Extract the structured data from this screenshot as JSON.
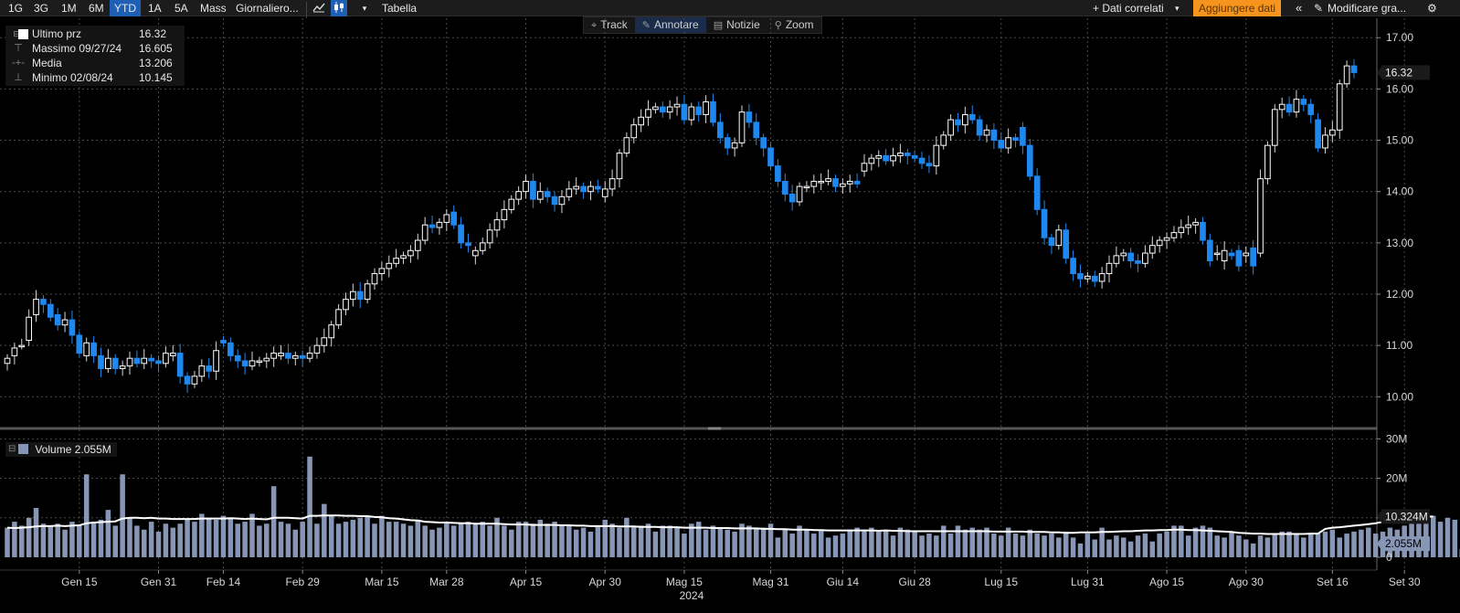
{
  "toolbar": {
    "periods": [
      "1G",
      "3G",
      "1M",
      "6M",
      "YTD",
      "1A",
      "5A",
      "Mass"
    ],
    "active_period": "YTD",
    "frequency": "Giornaliero...",
    "table_label": "Tabella",
    "related_label": "+ Dati correlati",
    "add_data_label": "Aggiungere dati",
    "modify_label": "Modificare gra...",
    "icons": [
      "line-chart-icon",
      "candlestick-icon",
      "dropdown-caret-icon",
      "double-chevron-left-icon",
      "pencil-icon",
      "gear-icon"
    ]
  },
  "modes": [
    {
      "label": "Track",
      "icon": "crosshair-icon"
    },
    {
      "label": "Annotare",
      "icon": "pencil-icon"
    },
    {
      "label": "Notizie",
      "icon": "news-icon"
    },
    {
      "label": "Zoom",
      "icon": "magnifier-icon"
    }
  ],
  "legend": {
    "last": {
      "label": "Ultimo prz",
      "value": "16.32"
    },
    "high": {
      "label": "Massimo 09/27/24",
      "value": "16.605"
    },
    "avg": {
      "label": "Media",
      "value": "13.206"
    },
    "low": {
      "label": "Minimo 02/08/24",
      "value": "10.145"
    }
  },
  "volume_legend": {
    "label": "Volume",
    "value": "2.055M"
  },
  "colors": {
    "up_candle": "#ffffff",
    "down_candle": "#1e88f0",
    "volume_bar": "#8896b5",
    "ma_line": "#ffffff",
    "grid": "#4a4a4a",
    "add_data_button": "#f7941d"
  },
  "chart_data": [
    {
      "type": "candlestick",
      "series_name": "Ultimo prz",
      "y_axis": {
        "min": 9.4,
        "max": 17.2,
        "ticks": [
          "10.00",
          "11.00",
          "12.00",
          "13.00",
          "14.00",
          "15.00",
          "16.00",
          "17.00"
        ],
        "side": "right"
      },
      "last_value_label": "16.32",
      "grid": true,
      "x_tick_labels": [
        "Gen 15",
        "Gen 31",
        "Feb 14",
        "Feb 29",
        "Mar 15",
        "Mar 28",
        "Apr 15",
        "Apr 30",
        "Mag 15",
        "Mag 31",
        "Giu 14",
        "Giu 28",
        "Lug 15",
        "Lug 31",
        "Ago 15",
        "Ago 30",
        "Set 16",
        "Set 30"
      ],
      "x_tick_index": [
        10,
        21,
        30,
        41,
        52,
        61,
        72,
        83,
        94,
        106,
        116,
        126,
        138,
        150,
        161,
        172,
        184,
        194
      ],
      "year_label": "2024",
      "closes": [
        10.75,
        10.95,
        11.0,
        11.55,
        11.9,
        11.8,
        11.55,
        11.4,
        11.5,
        11.2,
        10.85,
        11.05,
        10.8,
        10.55,
        10.75,
        10.55,
        10.6,
        10.75,
        10.65,
        10.75,
        10.7,
        10.65,
        10.85,
        10.85,
        10.4,
        10.25,
        10.4,
        10.6,
        10.5,
        10.9,
        11.05,
        10.8,
        10.7,
        10.6,
        10.7,
        10.7,
        10.75,
        10.85,
        10.85,
        10.75,
        10.8,
        10.75,
        10.85,
        11.0,
        11.15,
        11.4,
        11.7,
        11.9,
        12.05,
        11.9,
        12.2,
        12.4,
        12.5,
        12.6,
        12.7,
        12.75,
        12.85,
        13.05,
        13.35,
        13.3,
        13.4,
        13.55,
        13.35,
        13.0,
        12.95,
        12.85,
        13.0,
        13.25,
        13.45,
        13.65,
        13.85,
        14.0,
        14.2,
        13.85,
        14.0,
        13.9,
        13.75,
        13.9,
        14.05,
        14.1,
        14.0,
        14.1,
        14.05,
        14.05,
        14.25,
        14.75,
        15.05,
        15.3,
        15.45,
        15.6,
        15.65,
        15.55,
        15.65,
        15.7,
        15.4,
        15.65,
        15.5,
        15.75,
        15.35,
        15.05,
        14.85,
        14.95,
        15.55,
        15.35,
        15.05,
        14.85,
        14.5,
        14.2,
        13.95,
        13.8,
        14.1,
        14.1,
        14.2,
        14.2,
        14.25,
        14.1,
        14.15,
        14.2,
        14.15,
        14.55,
        14.65,
        14.7,
        14.6,
        14.7,
        14.75,
        14.7,
        14.65,
        14.55,
        14.5,
        14.9,
        15.1,
        15.4,
        15.3,
        15.5,
        15.4,
        15.1,
        15.2,
        15.0,
        14.85,
        15.05,
        15.0,
        14.9,
        14.3,
        13.65,
        13.1,
        12.95,
        13.25,
        12.7,
        12.4,
        12.3,
        12.35,
        12.25,
        12.4,
        12.6,
        12.75,
        12.8,
        12.65,
        12.6,
        12.8,
        12.95,
        13.05,
        13.1,
        13.2,
        13.3,
        13.35,
        13.4,
        13.05,
        12.65,
        12.8,
        12.85,
        12.75,
        12.55,
        12.8,
        12.55,
        14.25,
        14.9,
        15.6,
        15.7,
        15.55,
        15.8,
        15.7,
        15.5,
        14.85,
        15.1,
        15.2,
        16.1,
        16.45,
        16.32
      ],
      "opens": [
        10.65,
        10.8,
        11.0,
        11.1,
        11.6,
        11.9,
        11.8,
        11.6,
        11.4,
        11.5,
        11.2,
        10.8,
        11.05,
        10.8,
        10.55,
        10.75,
        10.55,
        10.6,
        10.75,
        10.65,
        10.75,
        10.7,
        10.65,
        10.8,
        10.85,
        10.4,
        10.25,
        10.4,
        10.6,
        10.5,
        11.1,
        11.05,
        10.8,
        10.7,
        10.6,
        10.7,
        10.7,
        10.75,
        10.8,
        10.85,
        10.75,
        10.8,
        10.75,
        10.85,
        11.0,
        11.15,
        11.4,
        11.7,
        11.9,
        12.05,
        11.9,
        12.2,
        12.4,
        12.5,
        12.6,
        12.7,
        12.75,
        12.85,
        13.05,
        13.35,
        13.3,
        13.4,
        13.6,
        13.35,
        13.0,
        12.75,
        12.85,
        13.0,
        13.25,
        13.45,
        13.65,
        13.85,
        14.0,
        14.2,
        13.85,
        14.0,
        13.9,
        13.75,
        13.9,
        14.05,
        14.1,
        14.0,
        14.1,
        13.9,
        14.05,
        14.25,
        14.75,
        15.05,
        15.3,
        15.45,
        15.6,
        15.65,
        15.55,
        15.65,
        15.7,
        15.4,
        15.65,
        15.5,
        15.75,
        15.35,
        15.05,
        14.85,
        14.95,
        15.55,
        15.35,
        15.05,
        14.85,
        14.5,
        14.2,
        13.95,
        13.8,
        14.1,
        14.1,
        14.2,
        14.2,
        14.25,
        14.1,
        14.15,
        14.2,
        14.4,
        14.55,
        14.65,
        14.7,
        14.6,
        14.7,
        14.75,
        14.7,
        14.65,
        14.55,
        14.5,
        14.9,
        15.1,
        15.4,
        15.3,
        15.5,
        15.4,
        15.1,
        15.2,
        15.0,
        14.85,
        15.05,
        15.25,
        14.9,
        14.3,
        13.65,
        13.1,
        12.95,
        13.25,
        12.7,
        12.4,
        12.3,
        12.35,
        12.25,
        12.4,
        12.6,
        12.75,
        12.8,
        12.65,
        12.6,
        12.8,
        12.95,
        13.05,
        13.1,
        13.2,
        13.3,
        13.35,
        13.4,
        13.05,
        12.8,
        12.65,
        12.8,
        12.85,
        12.75,
        12.9,
        12.8,
        14.25,
        14.9,
        15.6,
        15.7,
        15.55,
        15.8,
        15.7,
        15.4,
        14.85,
        15.1,
        15.2,
        16.1,
        16.45
      ]
    },
    {
      "type": "bar",
      "series_name": "Volume",
      "y_axis": {
        "min": 0,
        "max": 31,
        "ticks": [
          "0",
          "10M",
          "20M",
          "30M"
        ],
        "unit": "M",
        "side": "right"
      },
      "last_value_label": "2.055M",
      "ma_value_label": "10.324M",
      "grid": true,
      "values_millions": [
        7.5,
        9.0,
        8.0,
        10.0,
        12.5,
        8.5,
        8.0,
        8.5,
        7.0,
        9.0,
        8.0,
        21.0,
        9.0,
        9.5,
        12.0,
        8.0,
        21.0,
        10.0,
        8.0,
        7.0,
        9.0,
        6.5,
        8.5,
        7.5,
        8.5,
        9.5,
        9.0,
        11.0,
        10.0,
        9.5,
        10.5,
        10.0,
        8.5,
        9.0,
        11.0,
        8.0,
        8.5,
        18.0,
        9.0,
        8.5,
        7.0,
        9.0,
        25.5,
        8.5,
        13.5,
        10.5,
        8.5,
        9.0,
        9.5,
        10.0,
        10.5,
        8.5,
        10.5,
        9.0,
        9.0,
        8.5,
        8.0,
        9.5,
        8.0,
        7.0,
        7.5,
        9.0,
        8.0,
        8.5,
        9.0,
        8.5,
        9.0,
        8.0,
        10.0,
        8.0,
        7.0,
        9.0,
        9.0,
        8.5,
        9.5,
        8.5,
        9.0,
        8.0,
        8.0,
        7.0,
        7.5,
        6.5,
        8.0,
        9.5,
        8.5,
        7.5,
        10.0,
        8.0,
        8.0,
        8.5,
        6.5,
        8.0,
        8.0,
        7.5,
        6.0,
        8.5,
        9.0,
        7.0,
        8.0,
        7.5,
        7.0,
        6.5,
        8.5,
        8.0,
        7.5,
        7.5,
        8.5,
        5.0,
        7.0,
        6.0,
        8.0,
        7.0,
        6.0,
        7.0,
        5.0,
        5.5,
        6.0,
        7.0,
        7.5,
        7.0,
        7.5,
        6.5,
        7.0,
        5.5,
        7.5,
        7.0,
        6.5,
        5.5,
        6.0,
        5.5,
        8.0,
        6.0,
        8.0,
        7.0,
        7.5,
        7.0,
        7.5,
        6.0,
        5.5,
        7.5,
        6.0,
        5.5,
        7.0,
        6.0,
        5.5,
        6.0,
        5.0,
        6.5,
        5.0,
        3.5,
        6.0,
        4.5,
        7.5,
        4.5,
        5.5,
        5.0,
        4.0,
        5.5,
        6.0,
        4.0,
        6.0,
        6.5,
        8.0,
        8.0,
        5.5,
        7.5,
        8.0,
        7.5,
        5.5,
        5.0,
        6.5,
        5.5,
        4.5,
        3.5,
        5.5,
        5.0,
        6.0,
        6.5,
        6.5,
        6.0,
        5.0,
        6.0,
        6.0,
        6.5,
        7.0,
        5.0,
        6.0,
        6.5,
        7.0,
        7.5,
        6.0,
        6.5,
        7.5,
        7.0,
        8.0,
        8.5,
        9.0,
        9.5,
        10.5,
        9.0,
        10.0,
        9.5,
        2.055
      ],
      "ma_values_millions": [
        7.5,
        7.4,
        7.5,
        7.6,
        7.8,
        7.9,
        7.9,
        8.0,
        7.9,
        8.0,
        8.1,
        8.6,
        8.8,
        8.9,
        9.0,
        9.1,
        9.8,
        10.0,
        10.0,
        9.9,
        10.0,
        9.8,
        9.8,
        9.7,
        9.7,
        9.7,
        9.7,
        9.8,
        9.8,
        9.8,
        9.8,
        9.9,
        9.8,
        9.7,
        9.8,
        9.7,
        9.6,
        10.0,
        10.0,
        10.0,
        9.9,
        9.8,
        10.5,
        10.5,
        10.6,
        10.6,
        10.6,
        10.5,
        10.5,
        10.4,
        10.4,
        10.2,
        10.1,
        9.9,
        9.8,
        9.6,
        9.4,
        9.3,
        9.0,
        8.9,
        8.8,
        8.8,
        8.7,
        8.6,
        8.6,
        8.5,
        8.5,
        8.5,
        8.5,
        8.4,
        8.3,
        8.3,
        8.3,
        8.2,
        8.2,
        8.2,
        8.2,
        8.1,
        8.1,
        8.0,
        8.0,
        7.9,
        7.9,
        7.9,
        7.9,
        7.8,
        7.8,
        7.8,
        7.7,
        7.7,
        7.7,
        7.6,
        7.6,
        7.6,
        7.5,
        7.5,
        7.5,
        7.5,
        7.4,
        7.4,
        7.4,
        7.3,
        7.3,
        7.3,
        7.3,
        7.2,
        7.2,
        7.1,
        7.1,
        7.0,
        7.0,
        7.0,
        6.9,
        6.9,
        6.8,
        6.8,
        6.8,
        6.8,
        6.8,
        6.8,
        6.8,
        6.7,
        6.8,
        6.7,
        6.7,
        6.6,
        6.6,
        6.6,
        6.6,
        6.6,
        6.6,
        6.6,
        6.6,
        6.6,
        6.6,
        6.6,
        6.6,
        6.5,
        6.5,
        6.5,
        6.5,
        6.5,
        6.4,
        6.4,
        6.4,
        6.3,
        6.3,
        6.2,
        6.2,
        6.3,
        6.3,
        6.3,
        6.4,
        6.4,
        6.5,
        6.6,
        6.6,
        6.7,
        6.8,
        6.8,
        6.9,
        6.9,
        7.0,
        7.0,
        6.9,
        6.9,
        6.8,
        6.7,
        6.6,
        6.5,
        6.4,
        6.2,
        6.1,
        6.0,
        6.0,
        5.9,
        5.9,
        5.9,
        5.9,
        5.9,
        5.9,
        6.0,
        6.0,
        7.2,
        7.5,
        7.6,
        7.8,
        8.0,
        8.2,
        8.4,
        8.6,
        9.0,
        9.2,
        9.3,
        9.5,
        9.6,
        10.2,
        10.3,
        10.324
      ]
    }
  ]
}
